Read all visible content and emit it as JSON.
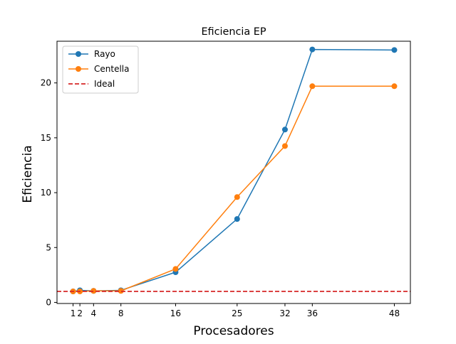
{
  "chart_data": {
    "type": "line",
    "title": "Eficiencia EP",
    "xlabel": "Procesadores",
    "ylabel": "Eficiencia",
    "x": [
      1,
      2,
      4,
      8,
      16,
      25,
      32,
      36,
      48
    ],
    "xticks": [
      1,
      2,
      4,
      8,
      16,
      25,
      32,
      36,
      48
    ],
    "xtick_labels": [
      "1",
      "2",
      "4",
      "8",
      "16",
      "25",
      "32",
      "36",
      "48"
    ],
    "yticks": [
      0,
      5,
      10,
      15,
      20
    ],
    "ytick_labels": [
      "0",
      "5",
      "10",
      "15",
      "20"
    ],
    "xlim": [
      -1.35,
      50.35
    ],
    "ylim": [
      -0.1,
      23.8
    ],
    "grid": false,
    "legend_position": "top-left",
    "series": [
      {
        "name": "Rayo",
        "color": "#1f77b4",
        "marker": "circle",
        "line_style": "solid",
        "values": [
          1.0,
          1.1,
          1.05,
          1.1,
          2.75,
          7.6,
          15.75,
          23.05,
          23.0
        ]
      },
      {
        "name": "Centella",
        "color": "#ff7f0e",
        "marker": "circle",
        "line_style": "solid",
        "values": [
          1.0,
          1.0,
          1.05,
          1.05,
          3.05,
          9.6,
          14.25,
          19.7,
          19.7
        ]
      },
      {
        "name": "Ideal",
        "color": "#d62728",
        "marker": "none",
        "line_style": "dashed",
        "values": [
          1,
          1,
          1,
          1,
          1,
          1,
          1,
          1,
          1
        ]
      }
    ]
  }
}
